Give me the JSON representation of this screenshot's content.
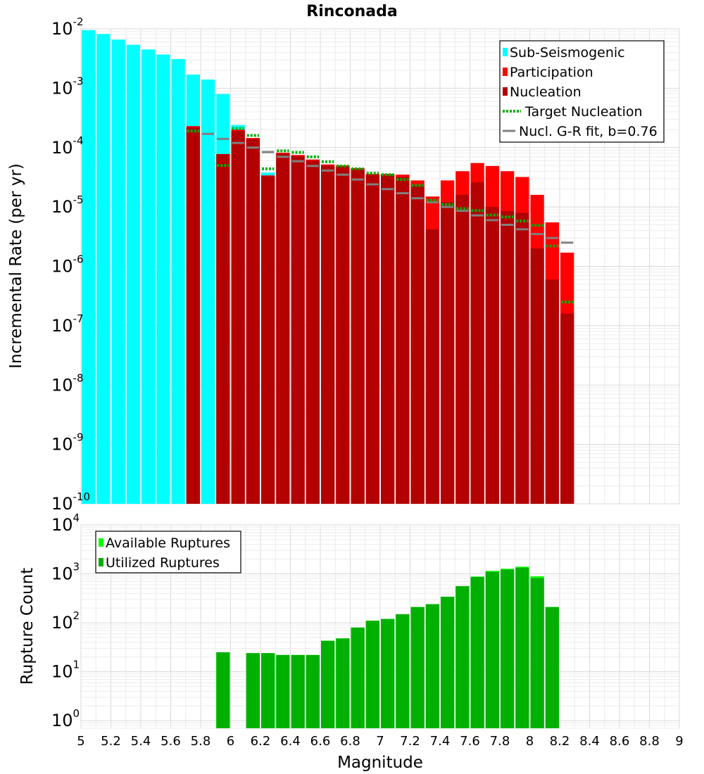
{
  "title": "Rinconada",
  "chart_data": [
    {
      "id": "rate-panel",
      "type": "bar",
      "ylabel": "Incremental Rate (per yr)",
      "xlabel": "",
      "yscale": "log",
      "ylim": [
        1e-10,
        0.01
      ],
      "xlim": [
        5,
        9
      ],
      "bin_width": 0.1,
      "grid": true,
      "legend_position": "top-right",
      "ytick_labels": [
        {
          "base": "10",
          "exp": "-2",
          "v": 0.01
        },
        {
          "base": "10",
          "exp": "-3",
          "v": 0.001
        },
        {
          "base": "10",
          "exp": "-4",
          "v": 0.0001
        },
        {
          "base": "10",
          "exp": "-5",
          "v": 1e-05
        },
        {
          "base": "10",
          "exp": "-6",
          "v": 1e-06
        },
        {
          "base": "10",
          "exp": "-7",
          "v": 1e-07
        },
        {
          "base": "10",
          "exp": "-8",
          "v": 1e-08
        },
        {
          "base": "10",
          "exp": "-9",
          "v": 1e-09
        },
        {
          "base": "10",
          "exp": "-10",
          "v": 1e-10
        }
      ],
      "series": [
        {
          "name": "Sub-Seismogenic",
          "kind": "bar",
          "color": "#00ffff",
          "x": [
            5.05,
            5.15,
            5.25,
            5.35,
            5.45,
            5.55,
            5.65,
            5.75,
            5.85,
            5.95,
            6.05,
            6.25
          ],
          "values": [
            0.0095,
            0.0082,
            0.0066,
            0.0054,
            0.0045,
            0.0037,
            0.0031,
            0.0017,
            0.0014,
            0.0008,
            0.00024,
            3.8e-05
          ]
        },
        {
          "name": "Participation",
          "kind": "bar",
          "color": "#ff0000",
          "x": [
            5.75,
            5.95,
            6.05,
            6.15,
            6.25,
            6.35,
            6.45,
            6.55,
            6.65,
            6.75,
            6.85,
            6.95,
            7.05,
            7.15,
            7.25,
            7.35,
            7.45,
            7.55,
            7.65,
            7.75,
            7.85,
            7.95,
            8.05,
            8.15,
            8.25
          ],
          "values": [
            0.00023,
            7.8e-05,
            0.0002,
            0.000145,
            3.4e-05,
            8.2e-05,
            7.5e-05,
            6.3e-05,
            5.2e-05,
            5e-05,
            4.5e-05,
            3.6e-05,
            3.6e-05,
            3.5e-05,
            2.8e-05,
            1.5e-05,
            2.8e-05,
            4e-05,
            5.5e-05,
            4.9e-05,
            4e-05,
            3.2e-05,
            1.6e-05,
            5.5e-06,
            1.7e-06
          ]
        },
        {
          "name": "Nucleation",
          "kind": "bar",
          "color": "#b30000",
          "x": [
            5.75,
            5.95,
            6.05,
            6.15,
            6.25,
            6.35,
            6.45,
            6.55,
            6.65,
            6.75,
            6.85,
            6.95,
            7.05,
            7.15,
            7.25,
            7.35,
            7.45,
            7.55,
            7.65,
            7.75,
            7.85,
            7.95,
            8.05,
            8.15,
            8.25
          ],
          "values": [
            0.00022,
            7.7e-05,
            0.00019,
            0.00014,
            3.3e-05,
            8e-05,
            7.2e-05,
            6e-05,
            5e-05,
            4.8e-05,
            4.3e-05,
            3.5e-05,
            3.4e-05,
            3.2e-05,
            2.3e-05,
            4.2e-06,
            1.2e-05,
            1.6e-05,
            2.6e-05,
            1e-05,
            8.5e-06,
            8e-06,
            2e-06,
            6e-07,
            1.6e-07
          ]
        },
        {
          "name": "Target Nucleation",
          "kind": "dotted-step",
          "color": "#00b000",
          "x": [
            5.75,
            5.95,
            6.05,
            6.15,
            6.25,
            6.35,
            6.45,
            6.55,
            6.65,
            6.75,
            6.85,
            6.95,
            7.05,
            7.15,
            7.25,
            7.35,
            7.45,
            7.55,
            7.65,
            7.75,
            7.85,
            7.95,
            8.05,
            8.15,
            8.25
          ],
          "values": [
            0.00019,
            5e-05,
            0.00021,
            0.00016,
            4.4e-05,
            8.8e-05,
            8.3e-05,
            7e-05,
            5.8e-05,
            4.9e-05,
            4.4e-05,
            3.7e-05,
            3.5e-05,
            2.9e-05,
            2.3e-05,
            1.3e-05,
            1.1e-05,
            9.4e-06,
            8.7e-06,
            7.3e-06,
            6.8e-06,
            5.8e-06,
            4.9e-06,
            2.2e-06,
            2.5e-07
          ]
        },
        {
          "name": "Nucl. G-R fit, b=0.76",
          "kind": "step",
          "color": "#808080",
          "x": [
            5.85,
            5.95,
            6.05,
            6.15,
            6.25,
            6.35,
            6.45,
            6.55,
            6.65,
            6.75,
            6.85,
            6.95,
            7.05,
            7.15,
            7.25,
            7.35,
            7.45,
            7.55,
            7.65,
            7.75,
            7.85,
            7.95,
            8.05,
            8.15,
            8.25
          ],
          "values": [
            0.00017,
            0.00014,
            0.00012,
            0.0001,
            8.4e-05,
            7e-05,
            5.9e-05,
            4.9e-05,
            4.1e-05,
            3.5e-05,
            2.9e-05,
            2.4e-05,
            2e-05,
            1.7e-05,
            1.4e-05,
            1.2e-05,
            1e-05,
            8.6e-06,
            7.2e-06,
            6e-06,
            5e-06,
            4.2e-06,
            3.5e-06,
            3e-06,
            2.5e-06
          ]
        }
      ]
    },
    {
      "id": "count-panel",
      "type": "bar",
      "ylabel": "Rupture Count",
      "xlabel": "Magnitude",
      "yscale": "log",
      "ylim": [
        0.7,
        10000
      ],
      "xlim": [
        5,
        9
      ],
      "bin_width": 0.1,
      "grid": true,
      "legend_position": "top-left",
      "xtick_labels": [
        "5",
        "5.2",
        "5.4",
        "5.6",
        "5.8",
        "6",
        "6.2",
        "6.4",
        "6.6",
        "6.8",
        "7",
        "7.2",
        "7.4",
        "7.6",
        "7.8",
        "8",
        "8.2",
        "8.4",
        "8.6",
        "8.8",
        "9"
      ],
      "ytick_labels": [
        {
          "base": "10",
          "exp": "4",
          "v": 10000
        },
        {
          "base": "10",
          "exp": "3",
          "v": 1000
        },
        {
          "base": "10",
          "exp": "2",
          "v": 100
        },
        {
          "base": "10",
          "exp": "1",
          "v": 10
        },
        {
          "base": "10",
          "exp": "0",
          "v": 1
        }
      ],
      "series": [
        {
          "name": "Available Ruptures",
          "kind": "bar",
          "color": "#00ff00",
          "x": [
            5.95,
            6.15,
            6.25,
            6.35,
            6.45,
            6.55,
            6.65,
            6.75,
            6.85,
            6.95,
            7.05,
            7.15,
            7.25,
            7.35,
            7.45,
            7.55,
            7.65,
            7.75,
            7.85,
            7.95,
            8.05,
            8.15
          ],
          "values": [
            25,
            24,
            24,
            22,
            22,
            22,
            43,
            48,
            80,
            110,
            120,
            150,
            210,
            240,
            340,
            560,
            880,
            1150,
            1270,
            1400,
            890,
            210
          ]
        },
        {
          "name": "Utilized Ruptures",
          "kind": "bar",
          "color": "#00b000",
          "x": [
            5.95,
            6.15,
            6.25,
            6.35,
            6.45,
            6.55,
            6.65,
            6.75,
            6.85,
            6.95,
            7.05,
            7.15,
            7.25,
            7.35,
            7.45,
            7.55,
            7.65,
            7.75,
            7.85,
            7.95,
            8.05,
            8.15
          ],
          "values": [
            25,
            24,
            24,
            22,
            22,
            22,
            43,
            48,
            80,
            110,
            120,
            150,
            210,
            240,
            340,
            560,
            860,
            1100,
            1220,
            1330,
            820,
            210
          ]
        }
      ]
    }
  ]
}
